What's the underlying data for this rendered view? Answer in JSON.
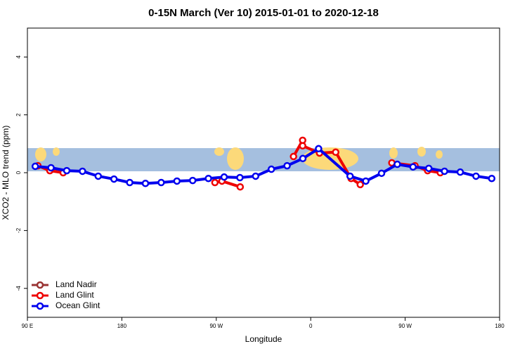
{
  "chart_data": {
    "type": "line",
    "title": "0-15N March (Ver 10)   2015-01-01 to 2020-12-18",
    "x_label": "Longitude",
    "y_label": "XCO2 - MLO trend (ppm)",
    "xlim": [
      90,
      540
    ],
    "xticks": [
      {
        "value": 90,
        "label": "90 E"
      },
      {
        "value": 180,
        "label": "180"
      },
      {
        "value": 270,
        "label": "90 W"
      },
      {
        "value": 360,
        "label": "0"
      },
      {
        "value": 450,
        "label": "90 W"
      },
      {
        "value": 540,
        "label": "180"
      }
    ],
    "ylim": [
      -5,
      5
    ],
    "yticks": [
      -4,
      -2,
      0,
      2,
      4
    ],
    "legend": "bottom-left",
    "series": [
      {
        "name": "Land Nadir",
        "color": "#993333",
        "x": [],
        "values": []
      },
      {
        "name": "Land Glint",
        "color": "#ee0000",
        "x": [
          100,
          111.4,
          124.1,
          null,
          268.7,
          275.4,
          292.8,
          null,
          343.6,
          352.3,
          352.3,
          368.4,
          383.8,
          398.5,
          407.2,
          null,
          437.3,
          459.4,
          471.4,
          483.5
        ],
        "values": [
          0.24,
          0.07,
          0,
          null,
          -0.34,
          -0.29,
          -0.49,
          null,
          0.56,
          1.12,
          0.93,
          0.68,
          0.71,
          -0.2,
          -0.41,
          null,
          0.34,
          0.24,
          0.07,
          0
        ]
      },
      {
        "name": "Ocean Glint",
        "color": "#0000ee",
        "x": [
          97.5,
          112.5,
          127.5,
          142.5,
          157.5,
          172.5,
          187.5,
          202.5,
          217.5,
          232.5,
          247.5,
          262.5,
          277.5,
          292.5,
          307.5,
          322.5,
          337.5,
          352.5,
          367.5,
          397.5,
          412.5,
          427.5,
          442.5,
          457.5,
          472.5,
          487.5,
          502.5,
          517.5,
          532.5
        ],
        "values": [
          0.22,
          0.17,
          0.07,
          0.05,
          -0.12,
          -0.22,
          -0.34,
          -0.37,
          -0.34,
          -0.29,
          -0.27,
          -0.2,
          -0.15,
          -0.17,
          -0.12,
          0.12,
          0.24,
          0.49,
          0.83,
          -0.12,
          -0.29,
          -0.02,
          0.29,
          0.2,
          0.15,
          0.05,
          0.02,
          -0.12,
          -0.2
        ]
      }
    ]
  }
}
